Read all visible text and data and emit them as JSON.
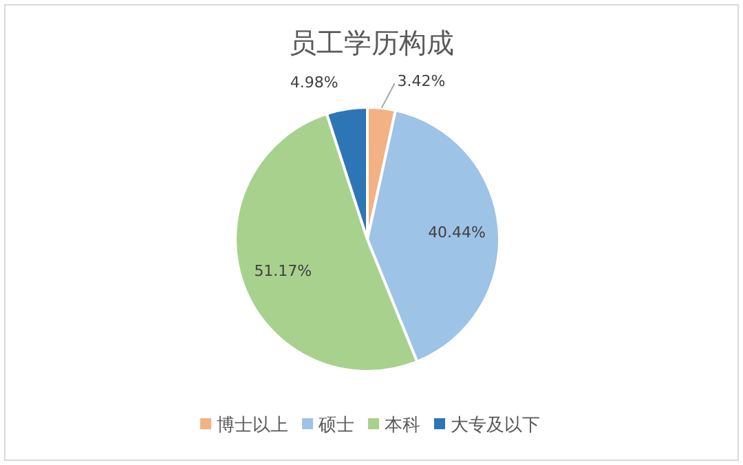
{
  "chart_data": {
    "type": "pie",
    "title": "员工学历构成",
    "categories": [
      "博士以上",
      "硕士",
      "本科",
      "大专及以下"
    ],
    "values": [
      3.42,
      40.44,
      51.17,
      4.98
    ],
    "colors": [
      "#f4b183",
      "#9dc3e6",
      "#a9d18e",
      "#2e75b6"
    ],
    "value_labels": [
      "3.42%",
      "40.44%",
      "51.17%",
      "4.98%"
    ],
    "legend": "bottom"
  }
}
